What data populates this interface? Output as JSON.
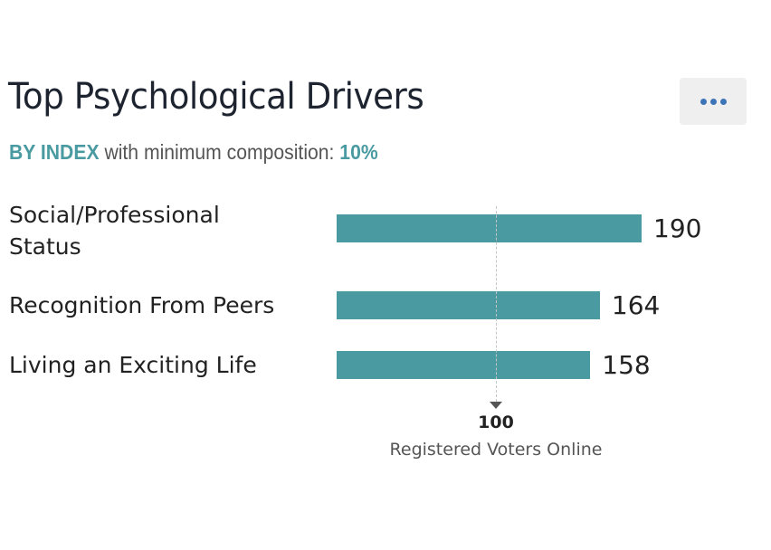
{
  "header": {
    "title": "Top Psychological Drivers",
    "menu_icon": "more-horizontal-icon",
    "subtitle_prefix": "BY INDEX",
    "subtitle_middle": " with minimum composition: ",
    "subtitle_value": "10%"
  },
  "chart_data": {
    "type": "bar",
    "orientation": "horizontal",
    "categories": [
      "Social/Professional Status",
      "Recognition From Peers",
      "Living an Exciting Life"
    ],
    "values": [
      190,
      164,
      158
    ],
    "value_labels": [
      "190",
      "164",
      "158"
    ],
    "reference_line": {
      "value": 100,
      "label": "100",
      "name": "Registered Voters Online"
    },
    "color": "#4a9ba1",
    "grid": false
  }
}
